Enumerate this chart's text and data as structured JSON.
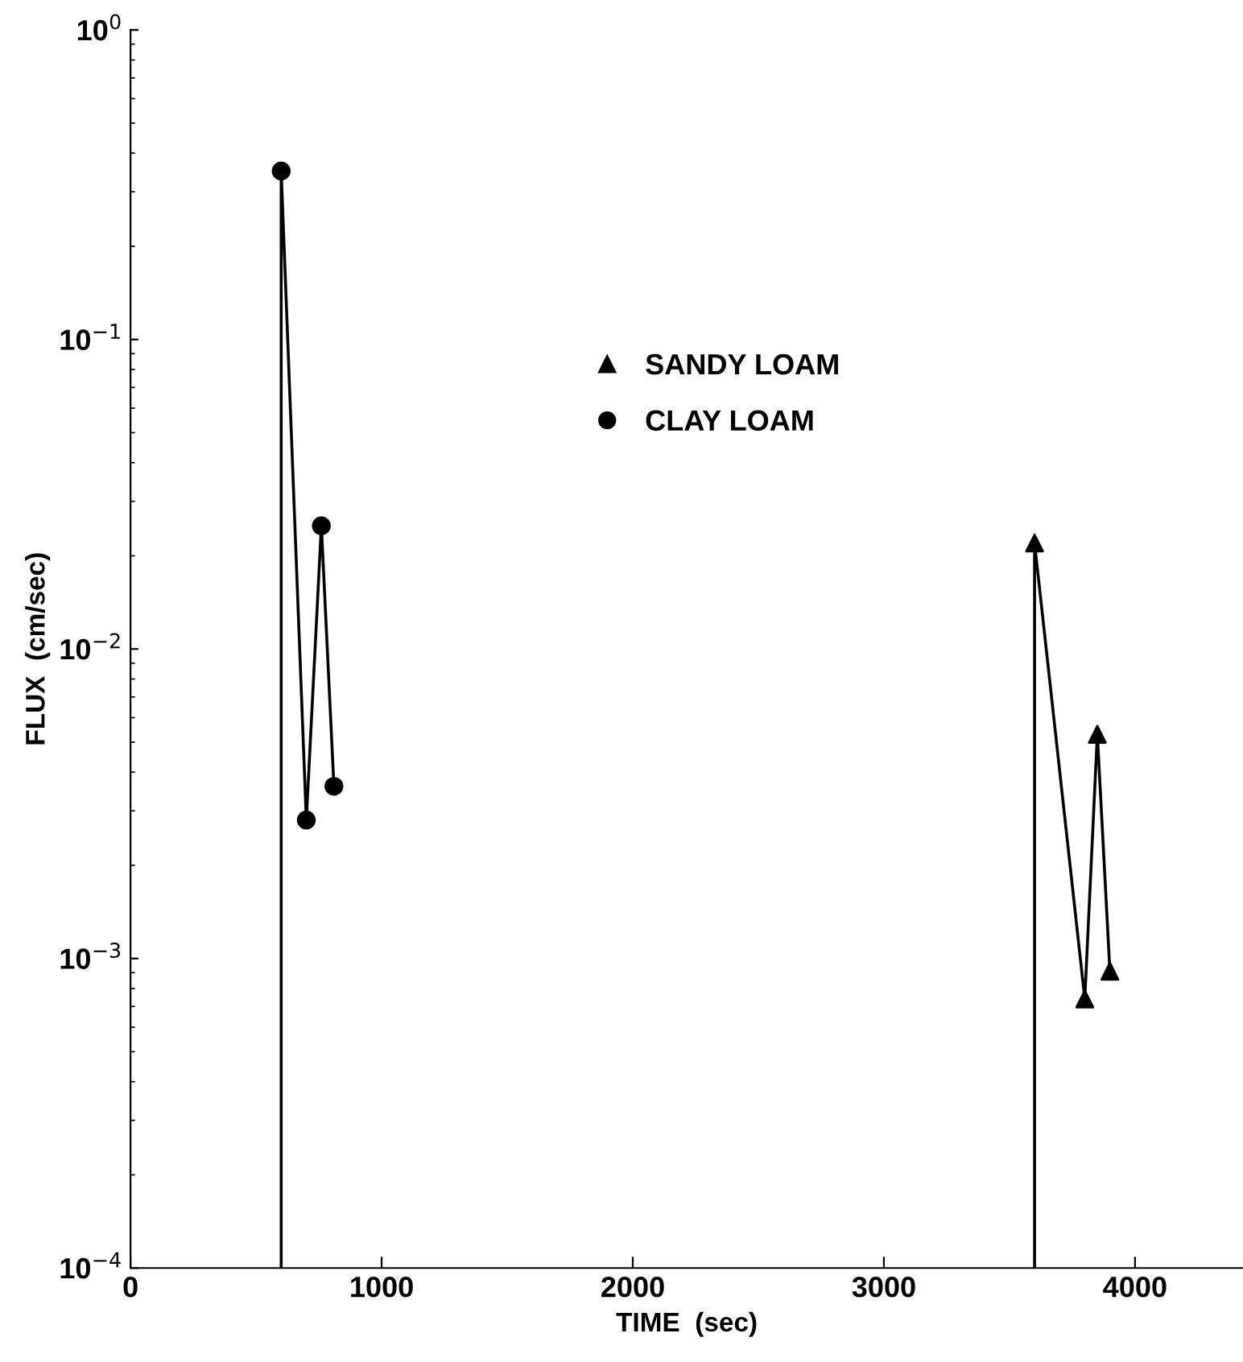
{
  "chart_data": {
    "type": "line",
    "xlabel": "TIME  (sec)",
    "ylabel": "FLUX  (cm/sec)",
    "log": "y",
    "xlim": [
      0,
      4430
    ],
    "ylim": [
      0.0001,
      1
    ],
    "xticks": [
      0,
      1000,
      2000,
      3000,
      4000
    ],
    "yticks": [
      {
        "value": 0.0001,
        "label": "10$^{−4}$"
      },
      {
        "value": 0.001,
        "label": "10$^{−3}$"
      },
      {
        "value": 0.01,
        "label": "10$^{−2}$"
      },
      {
        "value": 0.1,
        "label": "10$^{−1}$"
      },
      {
        "value": 1,
        "label": "10$^{0}$"
      }
    ],
    "grid": false,
    "legend": "top",
    "series": [
      {
        "name": "SANDY LOAM",
        "color": "#000000",
        "marker": "triangle",
        "x": [
          3600,
          3600,
          3800,
          3850,
          3900
        ],
        "values": [
          0.0001,
          0.022,
          0.00074,
          0.0053,
          0.00091
        ]
      },
      {
        "name": "CLAY LOAM",
        "color": "#000000",
        "marker": "circle",
        "x": [
          600,
          600,
          700,
          760,
          810
        ],
        "values": [
          0.0001,
          0.35,
          0.0028,
          0.025,
          0.0036
        ]
      }
    ]
  }
}
